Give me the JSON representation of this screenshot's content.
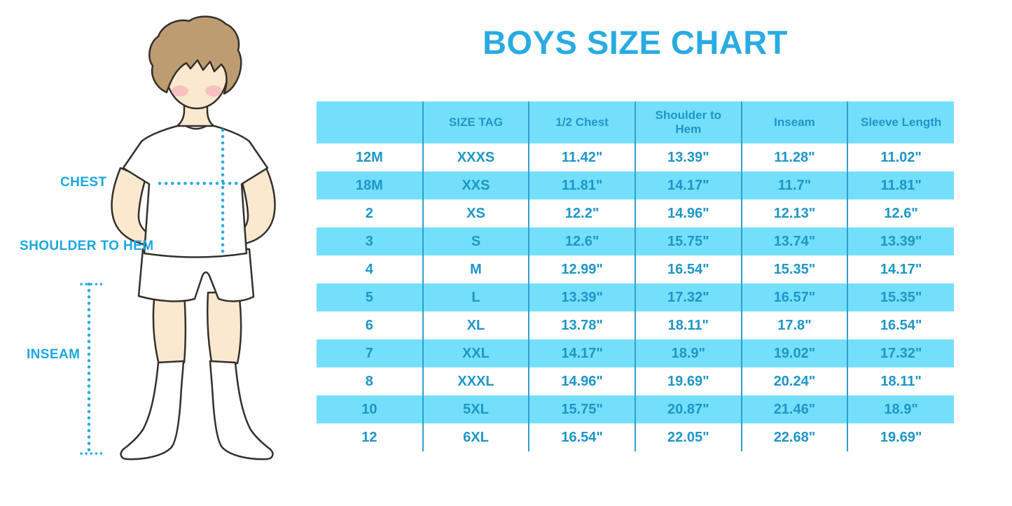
{
  "title": "BOYS SIZE CHART",
  "colors": {
    "title_blue": "#29ABE2",
    "label_blue": "#1BA7E0",
    "table_text": "#1D96C8",
    "row_cyan": "#74DFFB",
    "divider": "#2E9FD0",
    "dotted_line": "#29ABE2",
    "hair": "#BE9C72",
    "skin": "#FBE9CF",
    "cheek": "#F1A9B8"
  },
  "figure": {
    "labels": {
      "chest": "CHEST",
      "shoulder_to_hem": "SHOULDER TO HEM",
      "inseam": "INSEAM"
    }
  },
  "chart_data": {
    "type": "table",
    "title": "BOYS SIZE CHART",
    "columns": [
      "",
      "SIZE TAG",
      "1/2 Chest",
      "Shoulder to Hem",
      "Inseam",
      "Sleeve Length"
    ],
    "rows": [
      [
        "12M",
        "XXXS",
        "11.42\"",
        "13.39\"",
        "11.28\"",
        "11.02\""
      ],
      [
        "18M",
        "XXS",
        "11.81\"",
        "14.17\"",
        "11.7\"",
        "11.81\""
      ],
      [
        "2",
        "XS",
        "12.2\"",
        "14.96\"",
        "12.13\"",
        "12.6\""
      ],
      [
        "3",
        "S",
        "12.6\"",
        "15.75\"",
        "13.74\"",
        "13.39\""
      ],
      [
        "4",
        "M",
        "12.99\"",
        "16.54\"",
        "15.35\"",
        "14.17\""
      ],
      [
        "5",
        "L",
        "13.39\"",
        "17.32\"",
        "16.57\"",
        "15.35\""
      ],
      [
        "6",
        "XL",
        "13.78\"",
        "18.11\"",
        "17.8\"",
        "16.54\""
      ],
      [
        "7",
        "XXL",
        "14.17\"",
        "18.9\"",
        "19.02\"",
        "17.32\""
      ],
      [
        "8",
        "XXXL",
        "14.96\"",
        "19.69\"",
        "20.24\"",
        "18.11\""
      ],
      [
        "10",
        "5XL",
        "15.75\"",
        "20.87\"",
        "21.46\"",
        "18.9\""
      ],
      [
        "12",
        "6XL",
        "16.54\"",
        "22.05\"",
        "22.68\"",
        "19.69\""
      ]
    ]
  }
}
